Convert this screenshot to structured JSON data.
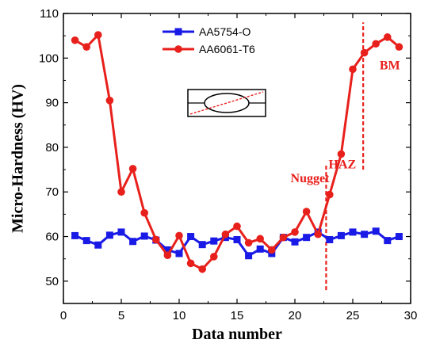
{
  "chart_data": {
    "type": "line",
    "xlabel": "Data number",
    "ylabel": "Micro-Hardness (HV)",
    "xlim": [
      0,
      30
    ],
    "ylim": [
      45,
      110
    ],
    "xticks": [
      0,
      5,
      10,
      15,
      20,
      25,
      30
    ],
    "yticks": [
      50,
      60,
      70,
      80,
      90,
      100,
      110
    ],
    "grid": false,
    "legend_position": "top-center",
    "x": [
      1,
      2,
      3,
      4,
      5,
      6,
      7,
      8,
      9,
      10,
      11,
      12,
      13,
      14,
      15,
      16,
      17,
      18,
      19,
      20,
      21,
      22,
      23,
      24,
      25,
      26,
      27,
      28,
      29
    ],
    "series": [
      {
        "name": "AA5754-O",
        "color": "#1a1ae6",
        "marker": "square",
        "values": [
          60.2,
          59.1,
          58.1,
          60.3,
          61.0,
          58.9,
          60.1,
          59.2,
          57.0,
          56.2,
          60.0,
          58.2,
          59.0,
          59.8,
          59.3,
          55.7,
          57.2,
          56.2,
          59.8,
          58.8,
          59.8,
          61.0,
          59.3,
          60.2,
          61.0,
          60.5,
          61.2,
          59.1,
          60.0
        ]
      },
      {
        "name": "AA6061-T6",
        "color": "#e8201c",
        "marker": "circle",
        "values": [
          104.0,
          102.5,
          105.2,
          90.5,
          70.0,
          75.2,
          65.3,
          59.3,
          55.8,
          60.2,
          54.0,
          52.7,
          55.5,
          60.5,
          62.3,
          58.6,
          59.5,
          57.0,
          59.8,
          61.0,
          65.6,
          60.5,
          69.4,
          78.5,
          97.5,
          101.2,
          103.2,
          104.7,
          102.5
        ]
      }
    ],
    "annotations": [
      {
        "text": "Nugget",
        "x": 21.3,
        "y": 72.2
      },
      {
        "text": "HAZ",
        "x": 24.1,
        "y": 75.3
      },
      {
        "text": "BM",
        "x": 28.2,
        "y": 97.5
      }
    ],
    "boundary_lines": [
      {
        "x": 22.7,
        "y_from": 48,
        "y_to": 76
      },
      {
        "x": 25.9,
        "y_from": 75,
        "y_to": 108
      }
    ],
    "inset": "weld-cross-section-schematic"
  }
}
